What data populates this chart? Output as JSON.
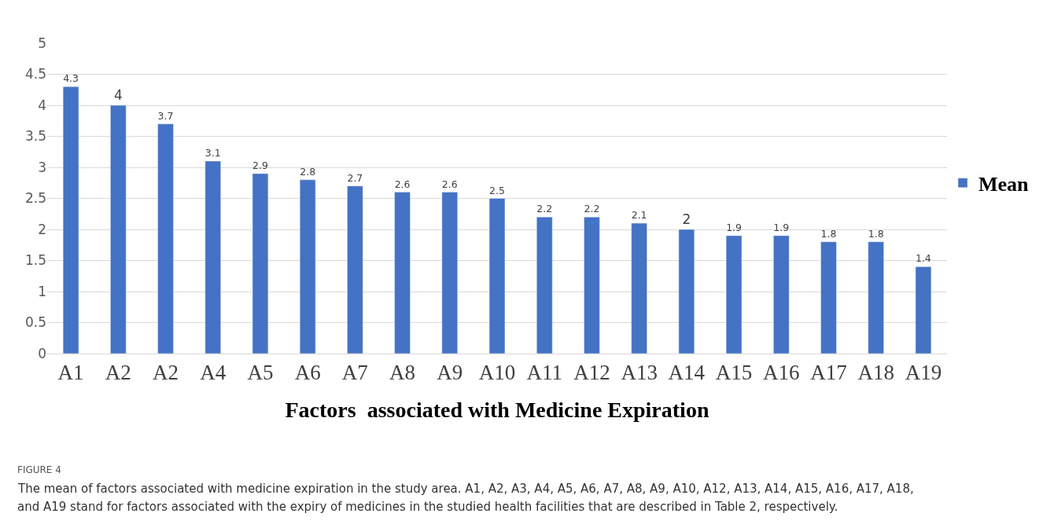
{
  "chart_data": {
    "type": "bar",
    "xlabel": "Factors  associated with Medicine Expiration",
    "categories": [
      "A1",
      "A2",
      "A2",
      "A4",
      "A5",
      "A6",
      "A7",
      "A8",
      "A9",
      "A10",
      "A11",
      "A12",
      "A13",
      "A14",
      "A15",
      "A16",
      "A17",
      "A18",
      "A19"
    ],
    "series": [
      {
        "name": "Mean",
        "color": "#4472c4",
        "values": [
          4.3,
          4,
          3.7,
          3.1,
          2.9,
          2.8,
          2.7,
          2.6,
          2.6,
          2.5,
          2.2,
          2.2,
          2.1,
          2,
          1.9,
          1.9,
          1.8,
          1.8,
          1.4
        ]
      }
    ],
    "ylim": [
      0,
      5
    ],
    "yticks": [
      0,
      0.5,
      1,
      1.5,
      2,
      2.5,
      3,
      3.5,
      4,
      4.5,
      5
    ],
    "grid": "y",
    "legend": "right",
    "data_labels": true,
    "annotations": [
      "FIGURE 4",
      "The mean of factors associated with medicine expiration in the study area. A1, A2, A3, A4, A5, A6, A7, A8, A9, A10, A12, A13, A14, A15, A16, A17, A18,",
      "and A19 stand for factors associated with the expiry of medicines in the studied health facilities that are described in Table 2, respectively."
    ]
  }
}
